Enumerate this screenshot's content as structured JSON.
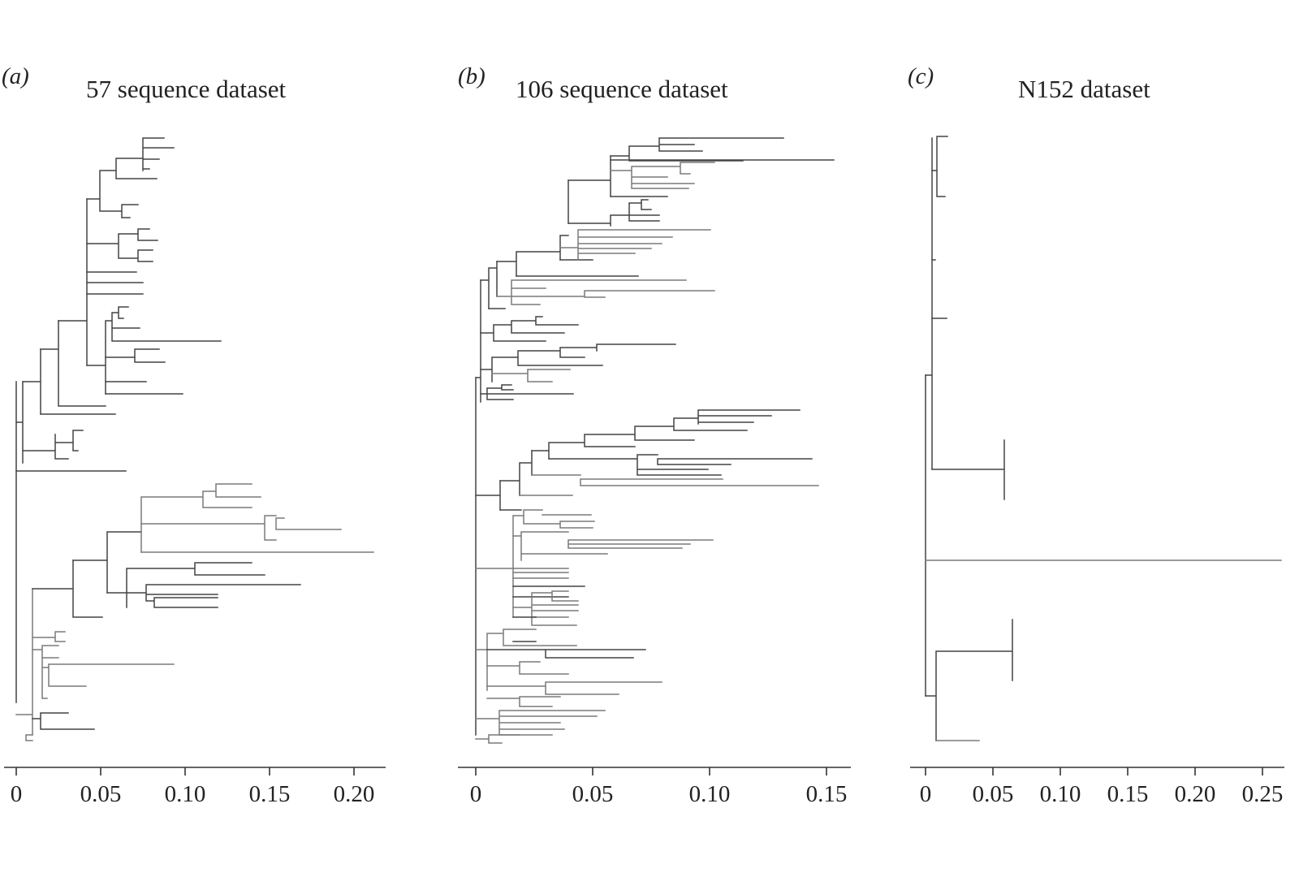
{
  "panels": [
    {
      "letter": "(a)",
      "title": "57 sequence dataset",
      "axis": {
        "ticks": [
          0,
          0.05,
          0.1,
          0.15,
          0.2
        ],
        "tick_labels": [
          "0",
          "0.05",
          "0.10",
          "0.15",
          "0.20"
        ]
      }
    },
    {
      "letter": "(b)",
      "title": "106 sequence dataset",
      "axis": {
        "ticks": [
          0,
          0.05,
          0.1,
          0.15
        ],
        "tick_labels": [
          "0",
          "0.05",
          "0.10",
          "0.15"
        ]
      }
    },
    {
      "letter": "(c)",
      "title": "N152 dataset",
      "axis": {
        "ticks": [
          0,
          0.05,
          0.1,
          0.15,
          0.2,
          0.25
        ],
        "tick_labels": [
          "0",
          "0.05",
          "0.10",
          "0.15",
          "0.20",
          "0.25"
        ]
      }
    }
  ],
  "colors": {
    "ink": "#444444",
    "gray_branch": "#7a7a7a",
    "background": "#ffffff"
  }
}
